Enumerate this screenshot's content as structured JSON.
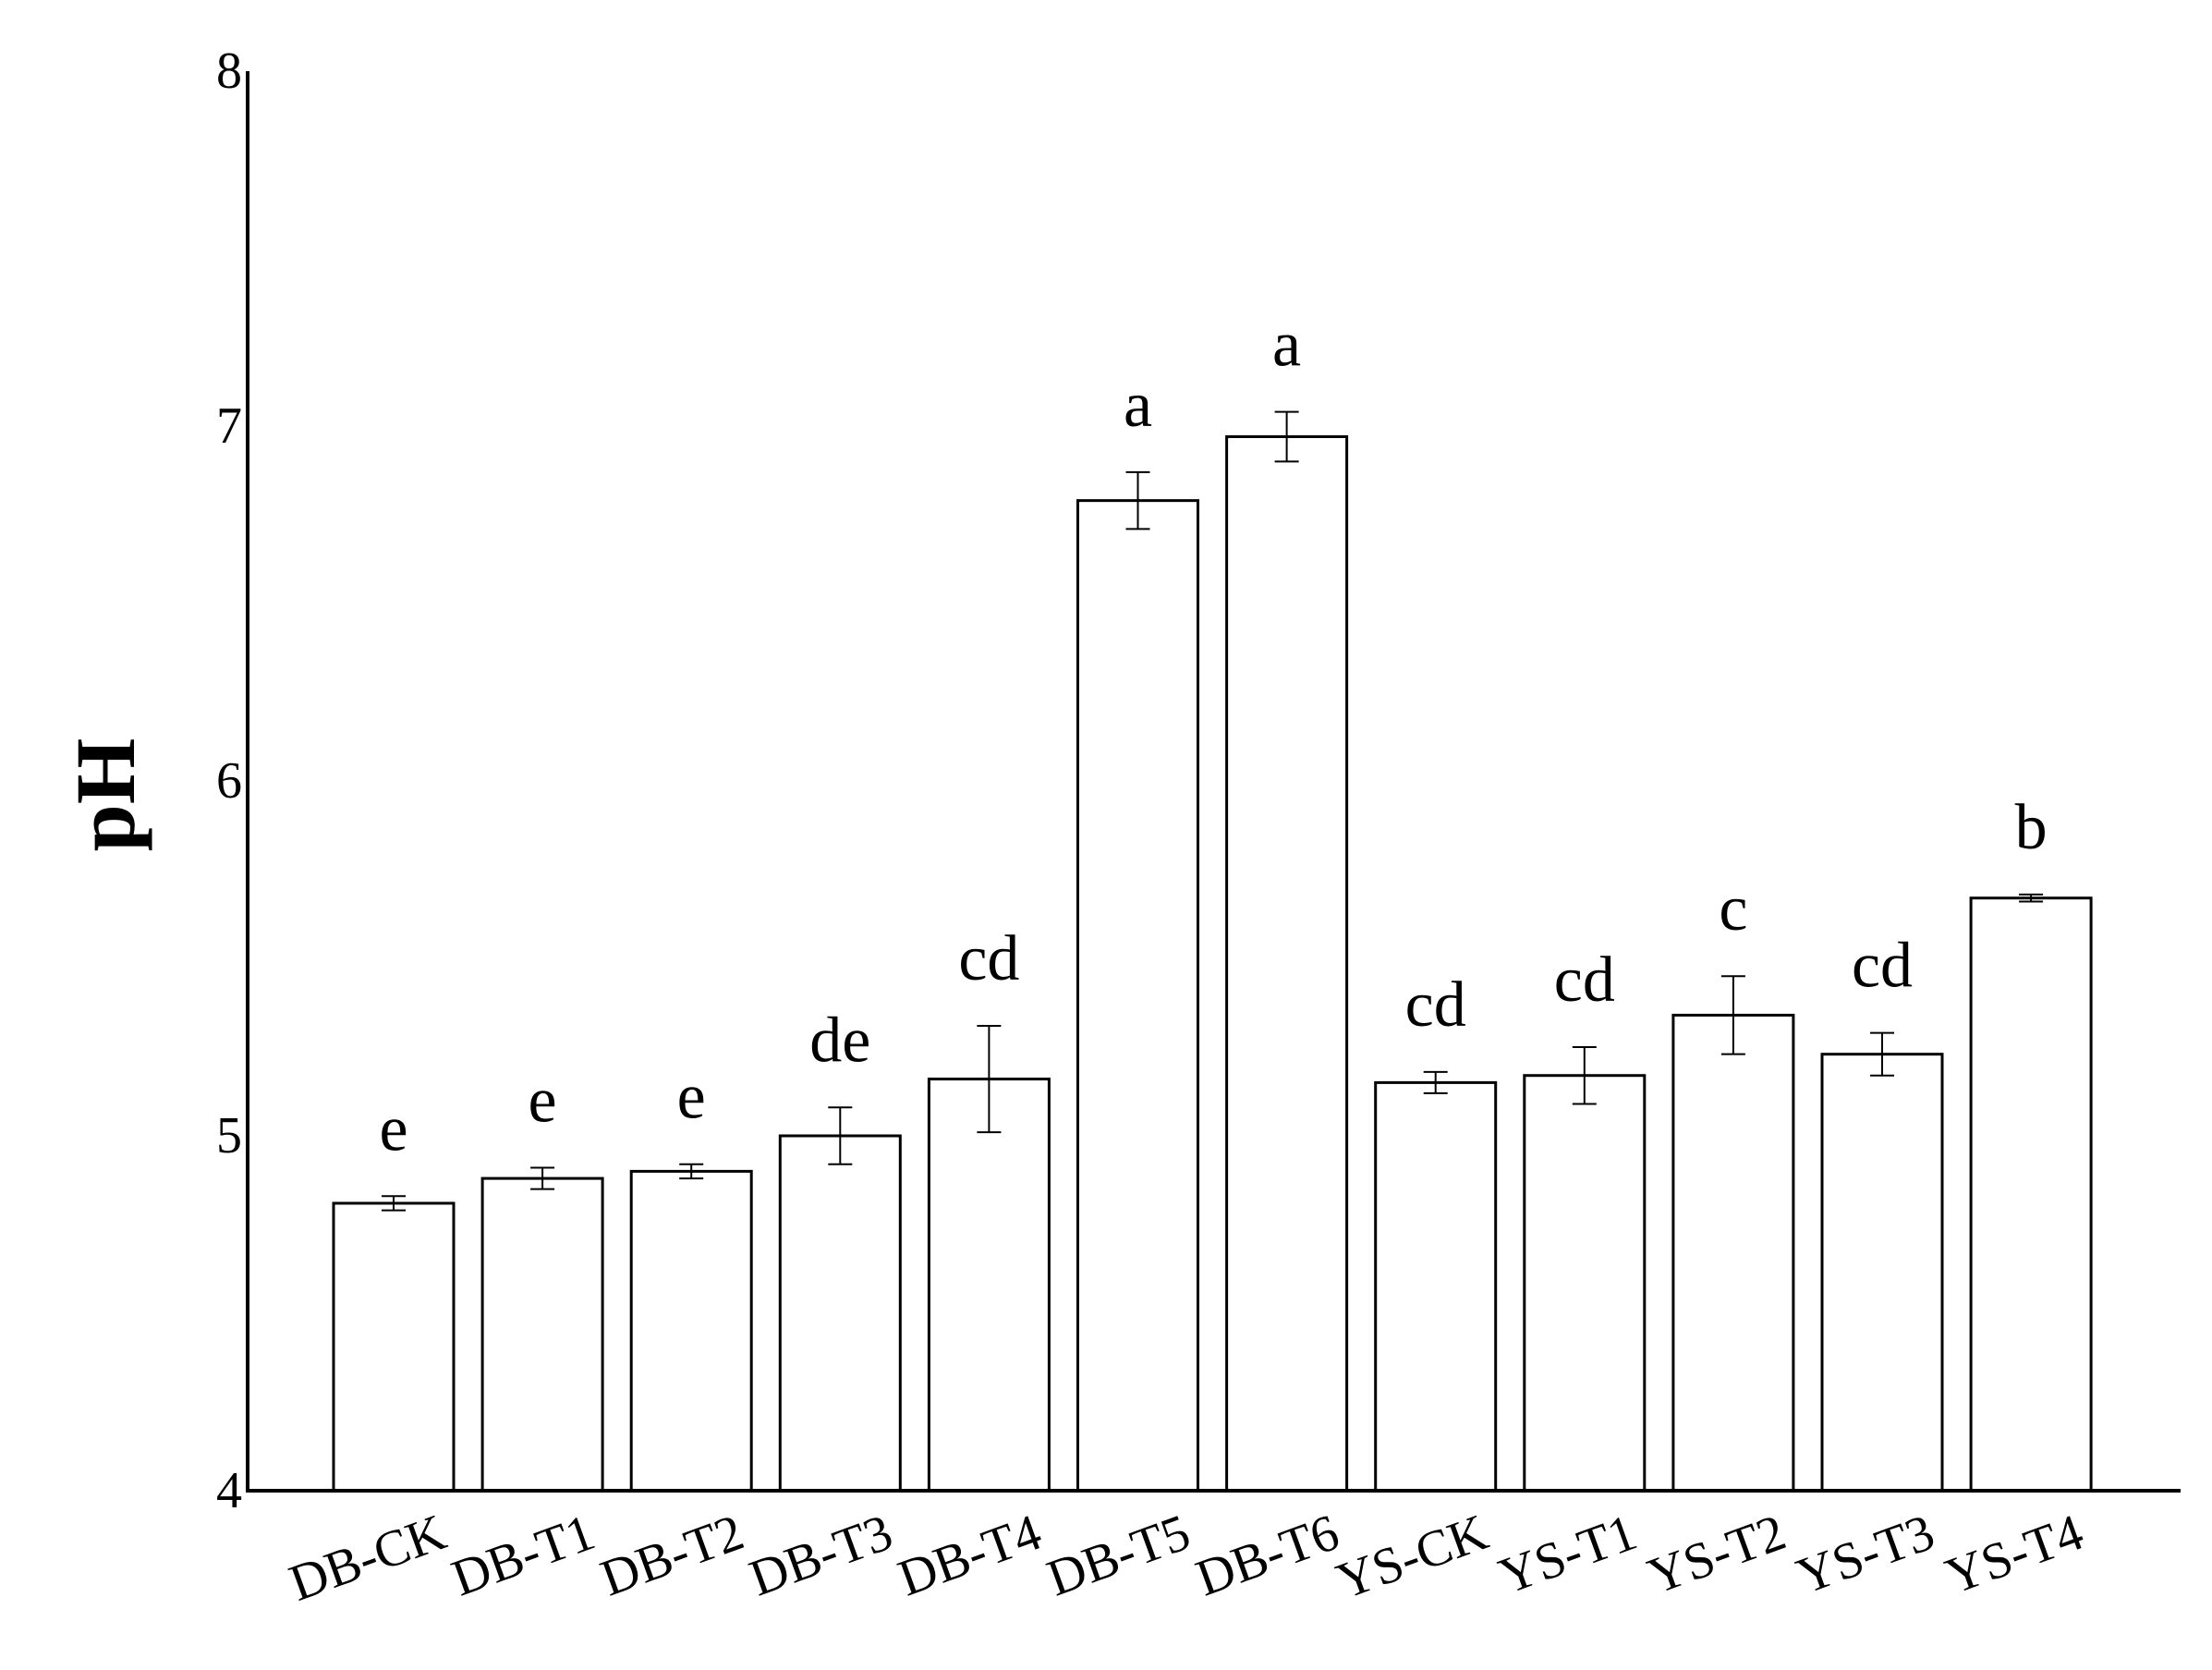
{
  "chart_data": {
    "type": "bar",
    "title": "",
    "xlabel": "",
    "ylabel": "pH",
    "ylim": [
      4,
      8
    ],
    "yticks": [
      "4",
      "5",
      "6",
      "7",
      "8"
    ],
    "grid": false,
    "legend": "none",
    "categories": [
      "DB-CK",
      "DB-T1",
      "DB-T2",
      "DB-T3",
      "DB-T4",
      "DB-T5",
      "DB-T6",
      "YS-CK",
      "YS-T1",
      "YS-T2",
      "YS-T3",
      "YS-T4"
    ],
    "values": [
      4.81,
      4.88,
      4.9,
      5.0,
      5.16,
      6.79,
      6.97,
      5.15,
      5.17,
      5.34,
      5.23,
      5.67
    ],
    "errors": [
      0.02,
      0.03,
      0.02,
      0.08,
      0.15,
      0.08,
      0.07,
      0.03,
      0.08,
      0.11,
      0.06,
      0.01
    ],
    "significance": [
      "e",
      "e",
      "e",
      "de",
      "cd",
      "a",
      "a",
      "cd",
      "cd",
      "c",
      "cd",
      "b"
    ],
    "colors": {
      "bar_fill": "#ffffff",
      "bar_stroke": "#000000",
      "axis": "#000000"
    }
  }
}
